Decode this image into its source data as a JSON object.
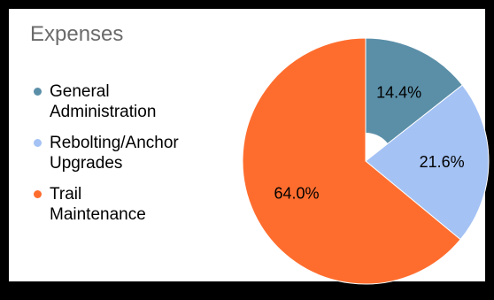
{
  "chart_data": {
    "type": "pie",
    "title": "Expenses",
    "categories": [
      "General Administration",
      "Rebolting/Anchor Upgrades",
      "Trail Maintenance"
    ],
    "legend_lines": [
      [
        "General",
        "Administration"
      ],
      [
        "Rebolting/Anchor",
        "Upgrades"
      ],
      [
        "Trail",
        "Maintenance"
      ]
    ],
    "values": [
      14.4,
      21.6,
      64.0
    ],
    "data_labels": [
      "14.4%",
      "21.6%",
      "64.0%"
    ],
    "colors": [
      "#5b8fa8",
      "#a4c2f4",
      "#ff6d2e"
    ],
    "donut_hole": true,
    "legend_position": "left"
  }
}
